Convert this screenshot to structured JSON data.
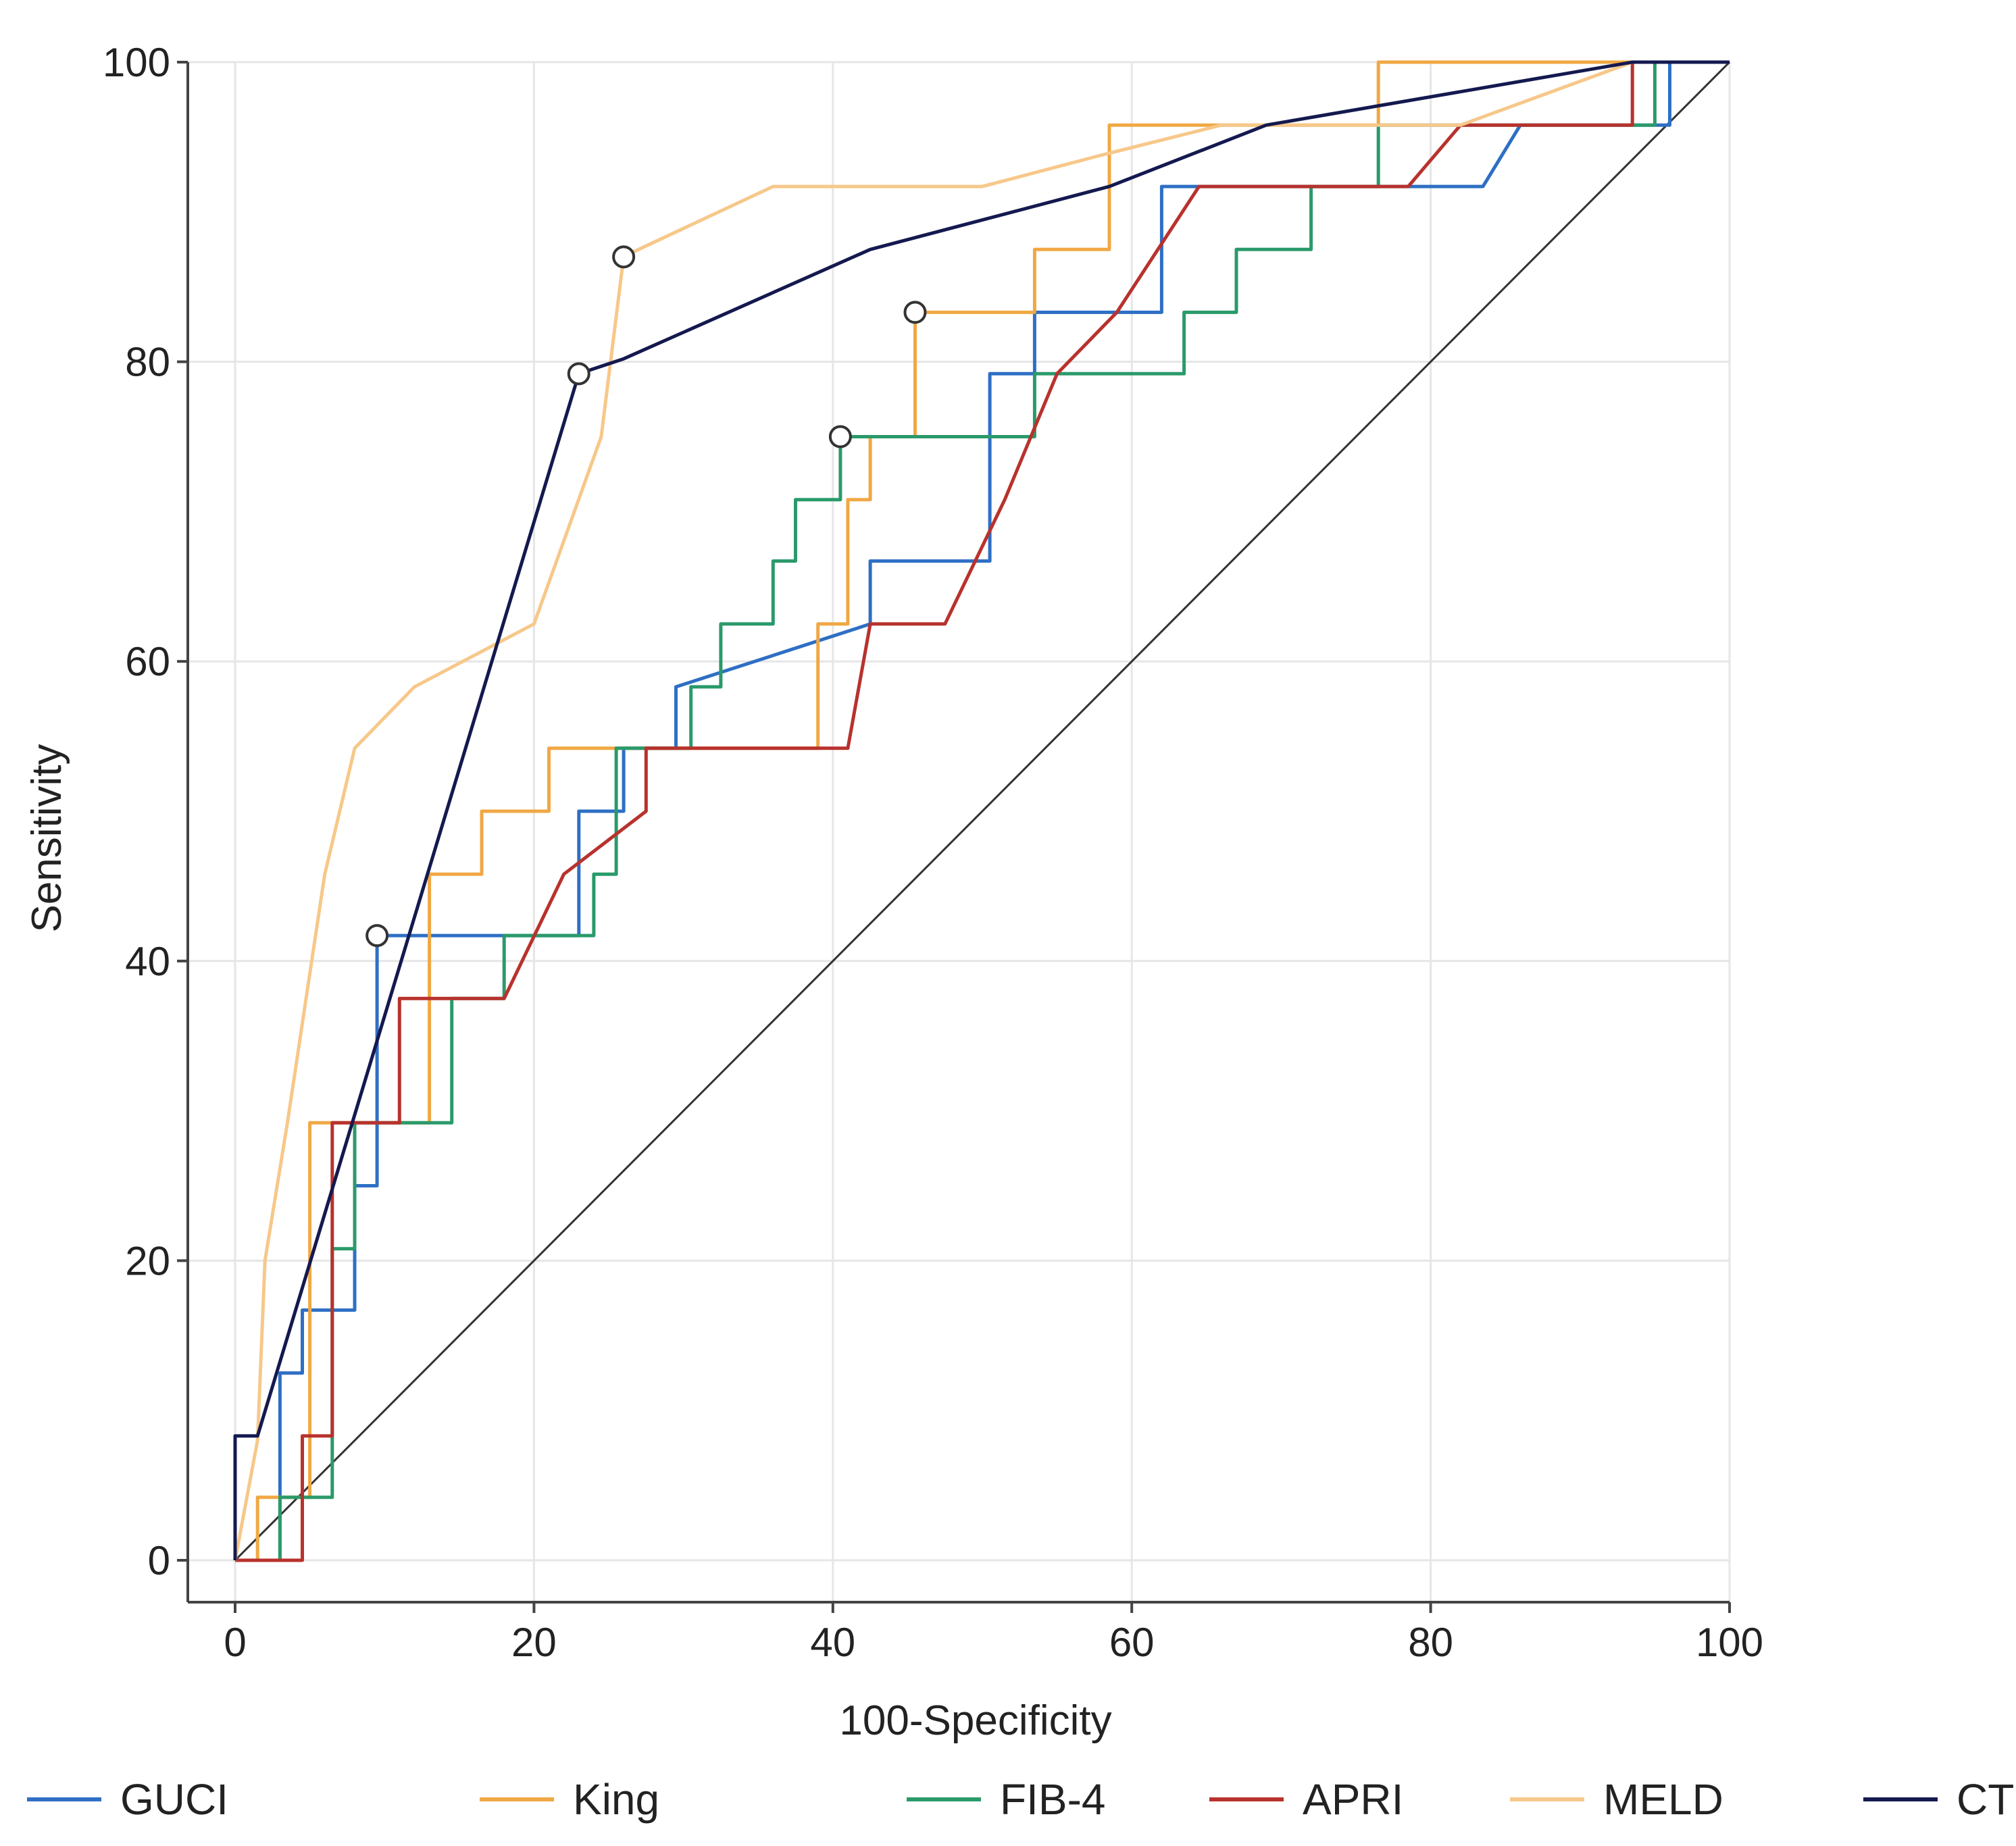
{
  "chart_data": {
    "type": "line",
    "title": "",
    "xlabel": "100-Specificity",
    "ylabel": "Sensitivity",
    "xlim": [
      0,
      100
    ],
    "ylim": [
      0,
      100
    ],
    "xticks": [
      0,
      20,
      40,
      60,
      80,
      100
    ],
    "yticks": [
      0,
      20,
      40,
      60,
      80,
      100
    ],
    "grid": true,
    "legend_position": "bottom",
    "reference_line": {
      "name": "reference-diagonal",
      "color": "#333333",
      "x": [
        0,
        100
      ],
      "y": [
        0,
        100
      ]
    },
    "series": [
      {
        "name": "GUCI",
        "color": "#2e6fc4",
        "x": [
          0,
          3,
          3,
          4.5,
          4.5,
          8,
          8,
          9.5,
          9.5,
          23,
          23,
          26,
          26,
          29.5,
          29.5,
          42.5,
          42.5,
          50.5,
          50.5,
          53.5,
          53.5,
          62,
          62,
          83.5,
          86,
          96,
          96,
          100
        ],
        "y": [
          0,
          0,
          12.5,
          12.5,
          16.7,
          16.7,
          25,
          25,
          41.7,
          41.7,
          50,
          50,
          54.2,
          54.2,
          58.3,
          62.5,
          66.7,
          66.7,
          79.2,
          79.2,
          83.3,
          83.3,
          91.7,
          91.7,
          95.8,
          95.8,
          100,
          100
        ],
        "optimal_point": [
          9.5,
          41.7
        ]
      },
      {
        "name": "King",
        "color": "#f0a844",
        "x": [
          0,
          1.5,
          1.5,
          5,
          5,
          13,
          13,
          16.5,
          16.5,
          21,
          21,
          39,
          39,
          41,
          41,
          42.5,
          42.5,
          45.5,
          45.5,
          53.5,
          53.5,
          58.5,
          58.5,
          76.5,
          76.5,
          100
        ],
        "y": [
          0,
          0,
          4.2,
          4.2,
          29.2,
          29.2,
          45.8,
          45.8,
          50,
          50,
          54.2,
          54.2,
          62.5,
          62.5,
          70.8,
          70.8,
          75,
          75,
          83.3,
          83.3,
          87.5,
          87.5,
          95.8,
          95.8,
          100,
          100
        ],
        "optimal_point": [
          45.5,
          83.3
        ]
      },
      {
        "name": "FIB-4",
        "color": "#2a9a6a",
        "x": [
          0,
          3,
          3,
          6.5,
          6.5,
          8,
          8,
          10,
          10,
          14.5,
          14.5,
          18,
          18,
          24,
          24,
          25.5,
          25.5,
          30.5,
          30.5,
          32.5,
          32.5,
          36,
          36,
          37.5,
          37.5,
          40.5,
          40.5,
          53.5,
          53.5,
          63.5,
          63.5,
          67,
          67,
          72,
          72,
          76.5,
          76.5,
          95,
          95,
          100
        ],
        "y": [
          0,
          0,
          4.2,
          4.2,
          20.8,
          20.8,
          29.2,
          29.2,
          29.2,
          29.2,
          37.5,
          37.5,
          41.7,
          41.7,
          45.8,
          45.8,
          54.2,
          54.2,
          58.3,
          58.3,
          62.5,
          62.5,
          66.7,
          66.7,
          70.8,
          70.8,
          75,
          75,
          79.2,
          79.2,
          83.3,
          83.3,
          87.5,
          87.5,
          91.7,
          91.7,
          95.8,
          95.8,
          100,
          100
        ],
        "optimal_point": [
          40.5,
          75
        ]
      },
      {
        "name": "APRI",
        "color": "#b8322d",
        "x": [
          0,
          4.5,
          4.5,
          6.5,
          6.5,
          11,
          11,
          18,
          22,
          27.5,
          27.5,
          31,
          41,
          42.5,
          47.5,
          51.5,
          51.5,
          55,
          55,
          59,
          64.5,
          78.5,
          82,
          93.5,
          93.5,
          100
        ],
        "y": [
          0,
          0,
          8.3,
          8.3,
          29.2,
          29.2,
          37.5,
          37.5,
          45.8,
          50,
          54.2,
          54.2,
          54.2,
          62.5,
          62.5,
          70.8,
          70.8,
          79.2,
          79.2,
          83.3,
          91.7,
          91.7,
          95.8,
          95.8,
          100,
          100
        ]
      },
      {
        "name": "MELD",
        "color": "#f7c88a",
        "x": [
          0,
          1.5,
          2,
          3.5,
          6,
          8,
          12,
          16,
          20,
          24.5,
          26,
          27,
          36,
          50,
          58,
          66,
          82,
          93.5,
          100
        ],
        "y": [
          0,
          8,
          20,
          29.2,
          45.8,
          54.2,
          58.3,
          60.4,
          62.5,
          75,
          87,
          87.5,
          91.7,
          91.7,
          93.8,
          95.8,
          95.8,
          100,
          100
        ],
        "optimal_point": [
          26,
          87
        ]
      },
      {
        "name": "CTP",
        "color": "#14194f",
        "x": [
          0,
          0,
          1.5,
          1.5,
          23,
          26,
          42.5,
          58.5,
          69,
          93.5,
          100
        ],
        "y": [
          0,
          8.3,
          8.3,
          8.3,
          79.2,
          80.2,
          87.5,
          91.7,
          95.8,
          100,
          100
        ],
        "optimal_point": [
          23,
          79.2
        ]
      }
    ]
  }
}
